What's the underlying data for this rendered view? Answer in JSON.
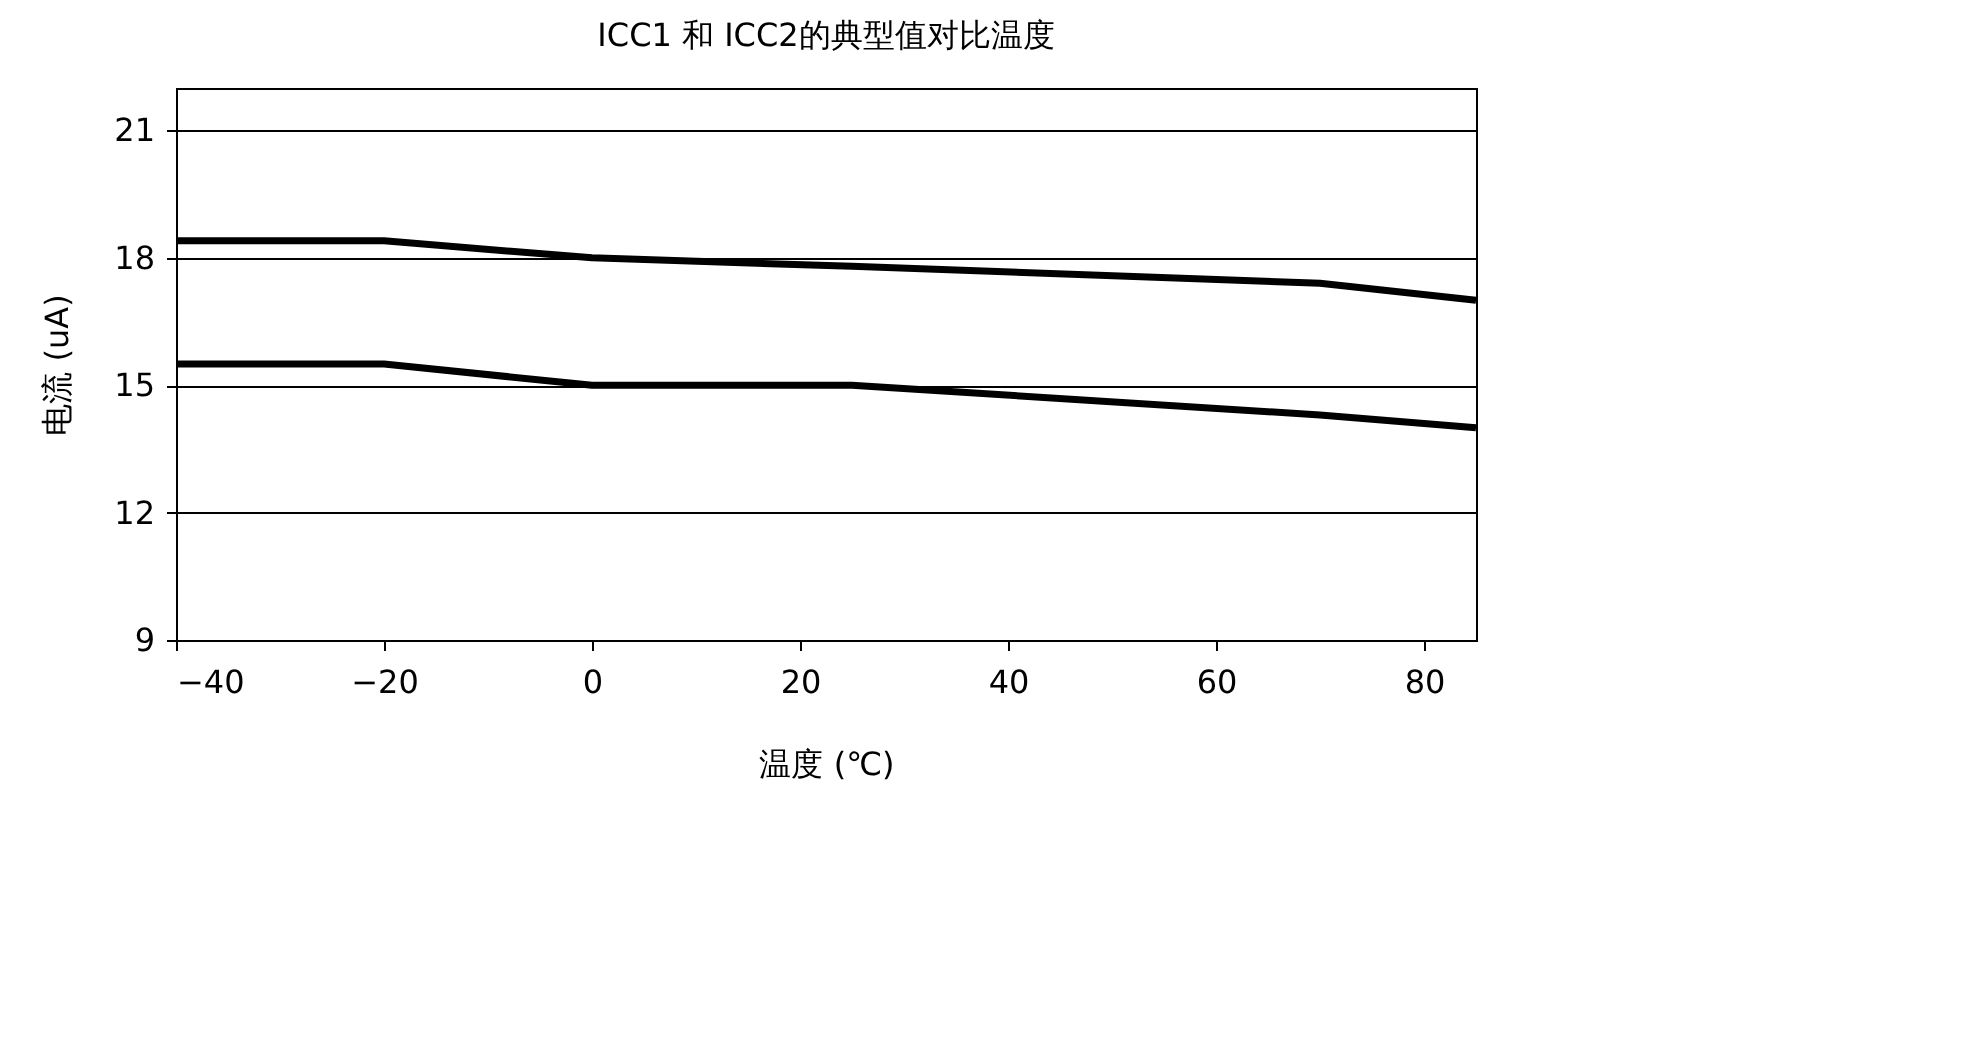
{
  "chart_data": {
    "type": "line",
    "title": "ICC1 和 ICC2的典型值对比温度",
    "xlabel": "温度 (℃)",
    "ylabel": "电流 (uA)",
    "x": [
      -40,
      -20,
      0,
      25,
      70,
      85
    ],
    "series": [
      {
        "color": "#000000",
        "values": [
          18.4,
          18.4,
          18.0,
          17.8,
          17.4,
          17.0
        ]
      },
      {
        "color": "#000000",
        "values": [
          15.5,
          15.5,
          15.0,
          15.0,
          14.3,
          14.0
        ]
      }
    ],
    "xlim": [
      -40,
      85
    ],
    "xticks": [
      -40,
      -20,
      0,
      20,
      40,
      60,
      80
    ],
    "ylim": [
      9,
      22
    ],
    "yticks": [
      9,
      12,
      15,
      18,
      21
    ],
    "grid": "y",
    "marker": "none",
    "line_style": "solid"
  }
}
